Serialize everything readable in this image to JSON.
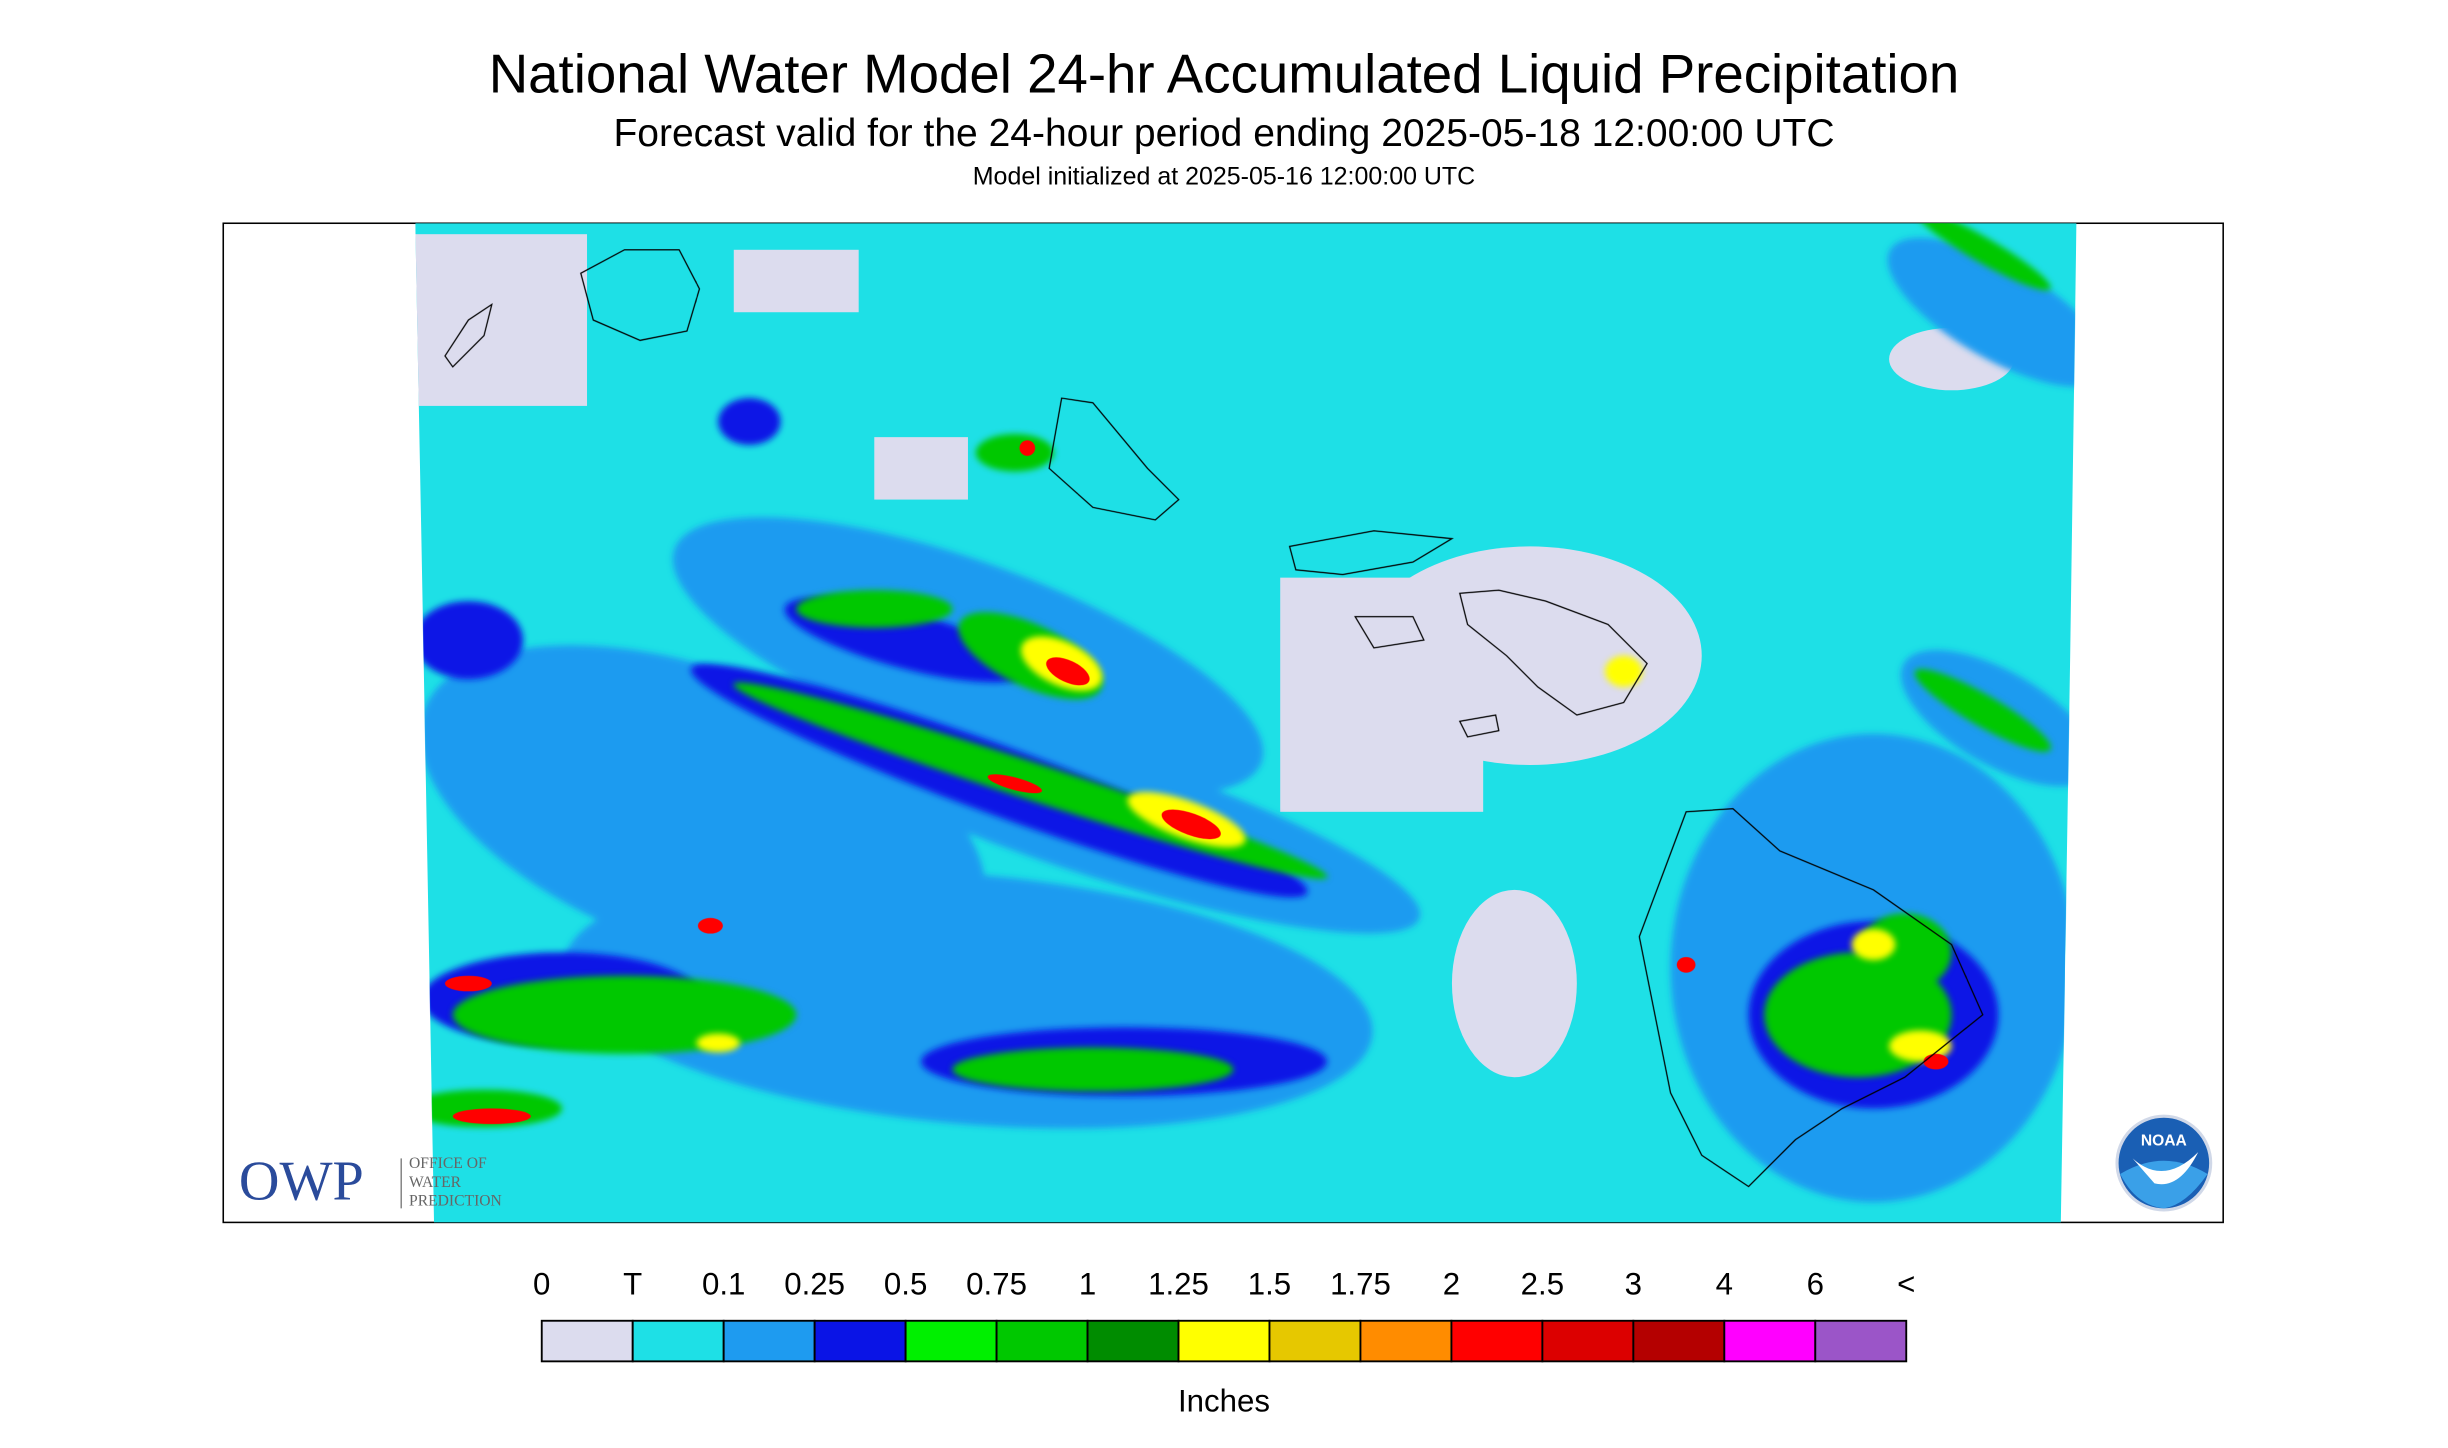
{
  "header": {
    "title": "National Water Model 24-hr Accumulated Liquid Precipitation",
    "subtitle": "Forecast valid for the 24-hour period ending 2025-05-18 12:00:00 UTC",
    "note": "Model initialized at 2025-05-16 12:00:00 UTC"
  },
  "logos": {
    "owp": "OWP",
    "owp_lines": [
      "OFFICE OF",
      "WATER",
      "PREDICTION"
    ],
    "noaa": "NOAA"
  },
  "legend": {
    "labels": [
      "0",
      "T",
      "0.1",
      "0.25",
      "0.5",
      "0.75",
      "1",
      "1.25",
      "1.5",
      "1.75",
      "2",
      "2.5",
      "3",
      "4",
      "6",
      "<"
    ],
    "colors": [
      "#dcdcee",
      "#1ee0e6",
      "#1e9bf0",
      "#0a14e6",
      "#00f000",
      "#00c800",
      "#008c00",
      "#ffff00",
      "#e6c800",
      "#ff8c00",
      "#ff0000",
      "#dc0000",
      "#b40000",
      "#ff00ff",
      "#9b55c8"
    ],
    "units": "Inches"
  }
}
